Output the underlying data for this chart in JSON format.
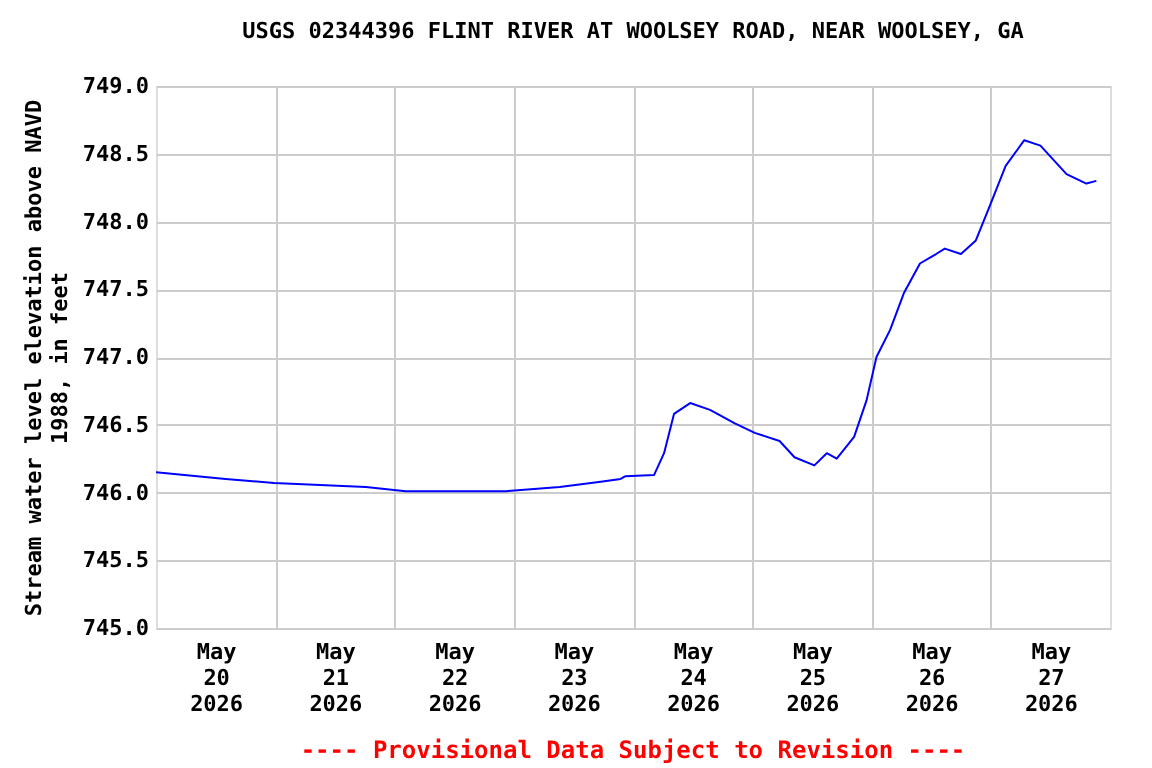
{
  "chart_data": {
    "type": "line",
    "title": "USGS 02344396 FLINT RIVER AT WOOLSEY ROAD, NEAR WOOLSEY, GA",
    "ylabel": "Stream water level elevation above NAVD\n1988, in feet",
    "annotations": [
      "---- Provisional Data Subject to Revision ----"
    ],
    "x": [
      "2026-05-20T00:00",
      "2026-05-20T14:00",
      "2026-05-20T23:45",
      "2026-05-21T18:15",
      "2026-05-22T02:15",
      "2026-05-22T22:30",
      "2026-05-23T09:15",
      "2026-05-23T17:30",
      "2026-05-23T21:30",
      "2026-05-23T22:30",
      "2026-05-24T04:15",
      "2026-05-24T06:15",
      "2026-05-24T08:15",
      "2026-05-24T11:30",
      "2026-05-24T15:30",
      "2026-05-24T20:30",
      "2026-05-25T00:30",
      "2026-05-25T05:30",
      "2026-05-25T08:30",
      "2026-05-25T12:30",
      "2026-05-25T15:00",
      "2026-05-25T17:00",
      "2026-05-25T20:30",
      "2026-05-25T23:00",
      "2026-05-26T01:00",
      "2026-05-26T03:45",
      "2026-05-26T06:30",
      "2026-05-26T09:45",
      "2026-05-26T13:00",
      "2026-05-26T14:45",
      "2026-05-26T18:00",
      "2026-05-26T21:00",
      "2026-05-26T23:45",
      "2026-05-27T03:00",
      "2026-05-27T06:45",
      "2026-05-27T10:00",
      "2026-05-27T15:15",
      "2026-05-27T19:15",
      "2026-05-27T21:15"
    ],
    "series": [
      {
        "color": "#0000ff",
        "values": [
          746.15,
          746.1,
          746.07,
          746.04,
          746.01,
          746.01,
          746.04,
          746.08,
          746.1,
          746.12,
          746.13,
          746.29,
          746.58,
          746.66,
          746.61,
          746.51,
          746.44,
          746.38,
          746.26,
          746.2,
          746.29,
          746.25,
          746.41,
          746.68,
          747.0,
          747.2,
          747.47,
          747.69,
          747.76,
          747.8,
          747.76,
          747.86,
          748.11,
          748.41,
          748.6,
          748.56,
          748.35,
          748.28,
          748.3
        ]
      }
    ],
    "xlim": [
      "2026-05-20T00:00",
      "2026-05-28T00:00"
    ],
    "xticks": [
      {
        "value": "2026-05-20T12:00",
        "label": "May\n20\n2026"
      },
      {
        "value": "2026-05-21T00:00",
        "label": null
      },
      {
        "value": "2026-05-21T12:00",
        "label": "May\n21\n2026"
      },
      {
        "value": "2026-05-22T00:00",
        "label": null
      },
      {
        "value": "2026-05-22T12:00",
        "label": "May\n22\n2026"
      },
      {
        "value": "2026-05-23T00:00",
        "label": null
      },
      {
        "value": "2026-05-23T12:00",
        "label": "May\n23\n2026"
      },
      {
        "value": "2026-05-24T00:00",
        "label": null
      },
      {
        "value": "2026-05-24T12:00",
        "label": "May\n24\n2026"
      },
      {
        "value": "2026-05-25T00:00",
        "label": null
      },
      {
        "value": "2026-05-25T12:00",
        "label": "May\n25\n2026"
      },
      {
        "value": "2026-05-26T00:00",
        "label": null
      },
      {
        "value": "2026-05-26T12:00",
        "label": "May\n26\n2026"
      },
      {
        "value": "2026-05-27T00:00",
        "label": null
      },
      {
        "value": "2026-05-27T12:00",
        "label": "May\n27\n2026"
      }
    ],
    "ylim": [
      745.0,
      749.0
    ],
    "yticks": [
      {
        "value": 745.0,
        "label": "745.0"
      },
      {
        "value": 745.5,
        "label": "745.5"
      },
      {
        "value": 746.0,
        "label": "746.0"
      },
      {
        "value": 746.5,
        "label": "746.5"
      },
      {
        "value": 747.0,
        "label": "747.0"
      },
      {
        "value": 747.5,
        "label": "747.5"
      },
      {
        "value": 748.0,
        "label": "748.0"
      },
      {
        "value": 748.5,
        "label": "748.5"
      },
      {
        "value": 749.0,
        "label": "749.0"
      }
    ],
    "grid": true,
    "line_style": "solid"
  }
}
